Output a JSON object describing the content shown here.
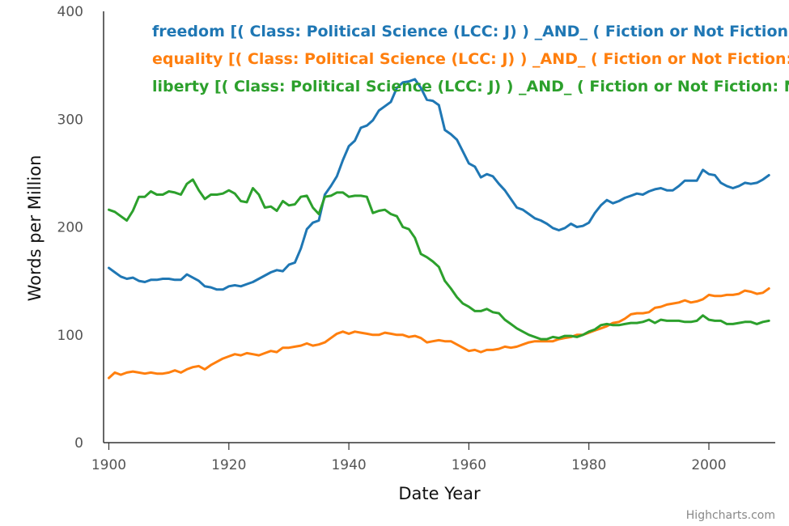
{
  "chart_data": {
    "type": "line",
    "title": "",
    "xlabel": "Date Year",
    "ylabel": "Words per Million",
    "xlim": [
      1899,
      2011
    ],
    "ylim": [
      0,
      400
    ],
    "x_ticks": [
      1900,
      1920,
      1940,
      1960,
      1980,
      2000
    ],
    "y_ticks": [
      0,
      100,
      200,
      300,
      400
    ],
    "grid": false,
    "legend_position": "top",
    "credits": "Highcharts.com",
    "x": [
      1900,
      1901,
      1902,
      1903,
      1904,
      1905,
      1906,
      1907,
      1908,
      1909,
      1910,
      1911,
      1912,
      1913,
      1914,
      1915,
      1916,
      1917,
      1918,
      1919,
      1920,
      1921,
      1922,
      1923,
      1924,
      1925,
      1926,
      1927,
      1928,
      1929,
      1930,
      1931,
      1932,
      1933,
      1934,
      1935,
      1936,
      1937,
      1938,
      1939,
      1940,
      1941,
      1942,
      1943,
      1944,
      1945,
      1946,
      1947,
      1948,
      1949,
      1950,
      1951,
      1952,
      1953,
      1954,
      1955,
      1956,
      1957,
      1958,
      1959,
      1960,
      1961,
      1962,
      1963,
      1964,
      1965,
      1966,
      1967,
      1968,
      1969,
      1970,
      1971,
      1972,
      1973,
      1974,
      1975,
      1976,
      1977,
      1978,
      1979,
      1980,
      1981,
      1982,
      1983,
      1984,
      1985,
      1986,
      1987,
      1988,
      1989,
      1990,
      1991,
      1992,
      1993,
      1994,
      1995,
      1996,
      1997,
      1998,
      1999,
      2000,
      2001,
      2002,
      2003,
      2004,
      2005,
      2006,
      2007,
      2008,
      2009,
      2010
    ],
    "series": [
      {
        "name": "freedom [( Class: Political Science (LCC: J) ) _AND_ ( Fiction or Not Fiction: Not Fiction ) ]",
        "color": "#1f77b4",
        "values": [
          162,
          158,
          154,
          152,
          153,
          150,
          149,
          151,
          151,
          152,
          152,
          151,
          151,
          156,
          153,
          150,
          145,
          144,
          142,
          142,
          145,
          146,
          145,
          147,
          149,
          152,
          155,
          158,
          160,
          159,
          165,
          167,
          180,
          198,
          204,
          206,
          230,
          238,
          247,
          262,
          275,
          280,
          292,
          294,
          299,
          308,
          312,
          316,
          329,
          334,
          335,
          337,
          329,
          318,
          317,
          313,
          290,
          286,
          281,
          270,
          259,
          256,
          246,
          249,
          247,
          240,
          234,
          226,
          218,
          216,
          212,
          208,
          206,
          203,
          199,
          197,
          199,
          203,
          200,
          201,
          204,
          213,
          220,
          225,
          222,
          224,
          227,
          229,
          231,
          230,
          233,
          235,
          236,
          234,
          234,
          238,
          243,
          243,
          243,
          253,
          249,
          248,
          241,
          238,
          236,
          238,
          241,
          240,
          241,
          244,
          248
        ]
      },
      {
        "name": "equality [( Class: Political Science (LCC: J) ) _AND_ ( Fiction or Not Fiction: Not Fiction ) ]",
        "color": "#ff7f0e",
        "values": [
          60,
          65,
          63,
          65,
          66,
          65,
          64,
          65,
          64,
          64,
          65,
          67,
          65,
          68,
          70,
          71,
          68,
          72,
          75,
          78,
          80,
          82,
          81,
          83,
          82,
          81,
          83,
          85,
          84,
          88,
          88,
          89,
          90,
          92,
          90,
          91,
          93,
          97,
          101,
          103,
          101,
          103,
          102,
          101,
          100,
          100,
          102,
          101,
          100,
          100,
          98,
          99,
          97,
          93,
          94,
          95,
          94,
          94,
          91,
          88,
          85,
          86,
          84,
          86,
          86,
          87,
          89,
          88,
          89,
          91,
          93,
          94,
          94,
          94,
          94,
          96,
          97,
          98,
          100,
          100,
          102,
          104,
          106,
          108,
          111,
          112,
          115,
          119,
          120,
          120,
          121,
          125,
          126,
          128,
          129,
          130,
          132,
          130,
          131,
          133,
          137,
          136,
          136,
          137,
          137,
          138,
          141,
          140,
          138,
          139,
          143
        ]
      },
      {
        "name": "liberty [( Class: Political Science (LCC: J) ) _AND_ ( Fiction or Not Fiction: Not Fiction ) ]",
        "color": "#2ca02c",
        "values": [
          216,
          214,
          210,
          206,
          215,
          228,
          228,
          233,
          230,
          230,
          233,
          232,
          230,
          240,
          244,
          234,
          226,
          230,
          230,
          231,
          234,
          231,
          224,
          223,
          236,
          230,
          218,
          219,
          215,
          224,
          220,
          221,
          228,
          229,
          218,
          212,
          228,
          229,
          232,
          232,
          228,
          229,
          229,
          228,
          213,
          215,
          216,
          212,
          210,
          200,
          198,
          190,
          175,
          172,
          168,
          163,
          150,
          143,
          135,
          129,
          126,
          122,
          122,
          124,
          121,
          120,
          114,
          110,
          106,
          103,
          100,
          98,
          96,
          96,
          98,
          97,
          99,
          99,
          98,
          100,
          103,
          105,
          109,
          110,
          109,
          109,
          110,
          111,
          111,
          112,
          114,
          111,
          114,
          113,
          113,
          113,
          112,
          112,
          113,
          118,
          114,
          113,
          113,
          110,
          110,
          111,
          112,
          112,
          110,
          112,
          113
        ]
      }
    ]
  },
  "legend": {
    "items": [
      "freedom [( Class: Political Science (LCC: J) ) _AND_ ( Fiction or Not Fiction: Not Fiction ) ]",
      "equality [( Class: Political Science (LCC: J) ) _AND_ ( Fiction or Not Fiction: Not Fiction ) ]",
      "liberty [( Class: Political Science (LCC: J) ) _AND_ ( Fiction or Not Fiction: Not Fiction ) ]"
    ]
  }
}
